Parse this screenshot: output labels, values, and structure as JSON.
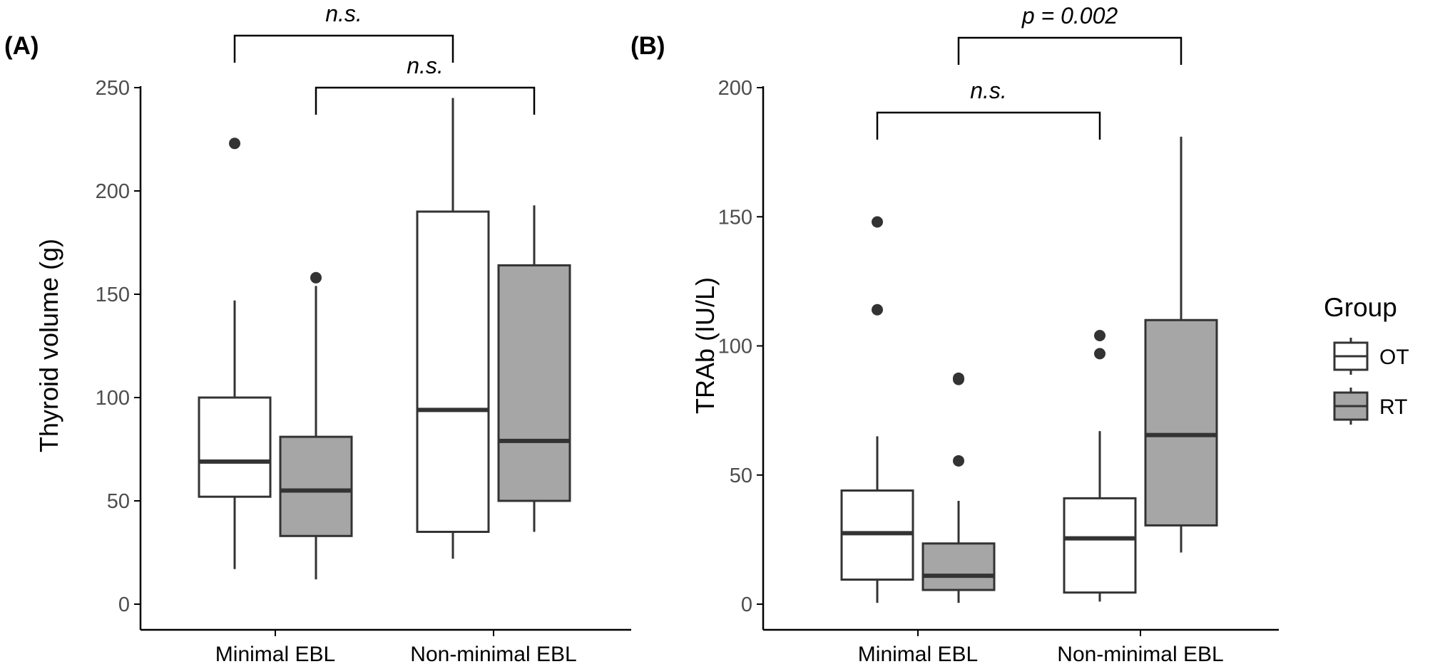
{
  "figure": {
    "legend": {
      "title": "Group",
      "items": [
        {
          "label": "OT",
          "fill": "#ffffff"
        },
        {
          "label": "RT",
          "fill": "#a6a6a6"
        }
      ]
    },
    "colors": {
      "box_stroke": "#333333",
      "axis": "#000000",
      "tick_text": "#4d4d4d",
      "point": "#333333"
    }
  },
  "chart_data": [
    {
      "panel": "(A)",
      "type": "box",
      "ylabel": "Thyroid volume (g)",
      "ylim": [
        0,
        250
      ],
      "yticks": [
        0,
        50,
        100,
        150,
        200,
        250
      ],
      "categories": [
        "Minimal EBL",
        "Non-minimal EBL"
      ],
      "series": [
        {
          "name": "OT",
          "boxes": [
            {
              "category": "Minimal EBL",
              "min": 17,
              "q1": 52,
              "median": 69,
              "q3": 100,
              "max": 147,
              "outliers": [
                223
              ]
            },
            {
              "category": "Non-minimal EBL",
              "min": 22,
              "q1": 35,
              "median": 94,
              "q3": 190,
              "max": 245,
              "outliers": []
            }
          ]
        },
        {
          "name": "RT",
          "boxes": [
            {
              "category": "Minimal EBL",
              "min": 12,
              "q1": 33,
              "median": 55,
              "q3": 81,
              "max": 154,
              "outliers": [
                158
              ]
            },
            {
              "category": "Non-minimal EBL",
              "min": 35,
              "q1": 50,
              "median": 79,
              "q3": 164,
              "max": 193,
              "outliers": []
            }
          ]
        }
      ],
      "annotations": [
        {
          "text": "n.s.",
          "from": [
            "Minimal EBL",
            "OT"
          ],
          "to": [
            "Non-minimal EBL",
            "OT"
          ],
          "level": 1
        },
        {
          "text": "n.s.",
          "from": [
            "Minimal EBL",
            "RT"
          ],
          "to": [
            "Non-minimal EBL",
            "RT"
          ],
          "level": 0
        }
      ]
    },
    {
      "panel": "(B)",
      "type": "box",
      "ylabel": "TRAb (IU/L)",
      "ylim": [
        0,
        200
      ],
      "yticks": [
        0,
        50,
        100,
        150,
        200
      ],
      "categories": [
        "Minimal EBL",
        "Non-minimal EBL"
      ],
      "series": [
        {
          "name": "OT",
          "boxes": [
            {
              "category": "Minimal EBL",
              "min": 0.5,
              "q1": 9.5,
              "median": 27.5,
              "q3": 44,
              "max": 65,
              "outliers": [
                114,
                148
              ]
            },
            {
              "category": "Non-minimal EBL",
              "min": 1,
              "q1": 4.5,
              "median": 25.5,
              "q3": 41,
              "max": 67,
              "outliers": [
                97,
                104
              ]
            }
          ]
        },
        {
          "name": "RT",
          "boxes": [
            {
              "category": "Minimal EBL",
              "min": 0.5,
              "q1": 5.5,
              "median": 11,
              "q3": 23.5,
              "max": 40,
              "outliers": [
                55.5,
                87,
                87.5
              ]
            },
            {
              "category": "Non-minimal EBL",
              "min": 20,
              "q1": 30.5,
              "median": 65.5,
              "q3": 110,
              "max": 181,
              "outliers": []
            }
          ]
        }
      ],
      "annotations": [
        {
          "text": "p = 0.002",
          "from": [
            "Minimal EBL",
            "RT"
          ],
          "to": [
            "Non-minimal EBL",
            "RT"
          ],
          "level": 1
        },
        {
          "text": "n.s.",
          "from": [
            "Minimal EBL",
            "OT"
          ],
          "to": [
            "Non-minimal EBL",
            "OT"
          ],
          "level": 0
        }
      ]
    }
  ]
}
